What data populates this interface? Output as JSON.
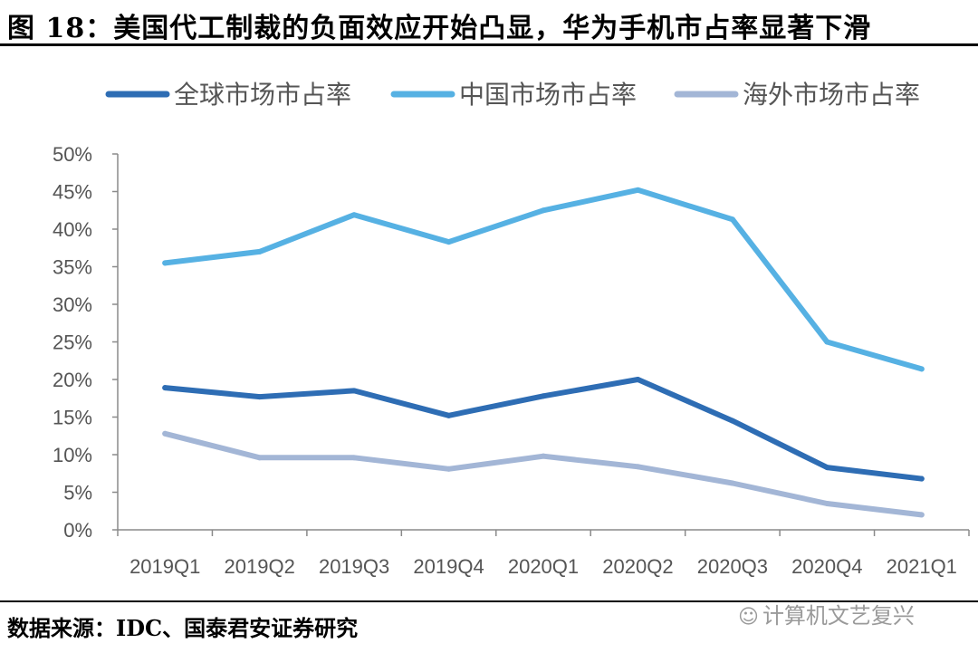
{
  "title": "图 18：美国代工制裁的负面效应开始凸显，华为手机市占率显著下滑",
  "source": "数据来源：IDC、国泰君安证券研究",
  "watermark": "计算机文艺复兴",
  "colors": {
    "global": "#2E6DB4",
    "china": "#56B1E3",
    "overseas": "#A3B6D6"
  },
  "chart_data": {
    "type": "line",
    "x": [
      "2019Q1",
      "2019Q2",
      "2019Q3",
      "2019Q4",
      "2020Q1",
      "2020Q2",
      "2020Q3",
      "2020Q4",
      "2021Q1"
    ],
    "yticks": [
      "0%",
      "5%",
      "10%",
      "15%",
      "20%",
      "25%",
      "30%",
      "35%",
      "40%",
      "45%",
      "50%"
    ],
    "ylim": [
      0,
      50
    ],
    "legend_position": "top",
    "series": [
      {
        "name": "全球市场市占率",
        "values": [
          18.9,
          17.7,
          18.5,
          15.2,
          17.8,
          20.0,
          14.5,
          8.3,
          6.8
        ]
      },
      {
        "name": "中国市场市占率",
        "values": [
          35.5,
          37.0,
          41.9,
          38.3,
          42.5,
          45.2,
          41.3,
          25.0,
          21.4
        ]
      },
      {
        "name": "海外市场市占率",
        "values": [
          12.8,
          9.6,
          9.6,
          8.1,
          9.8,
          8.4,
          6.2,
          3.5,
          2.0
        ]
      }
    ]
  }
}
